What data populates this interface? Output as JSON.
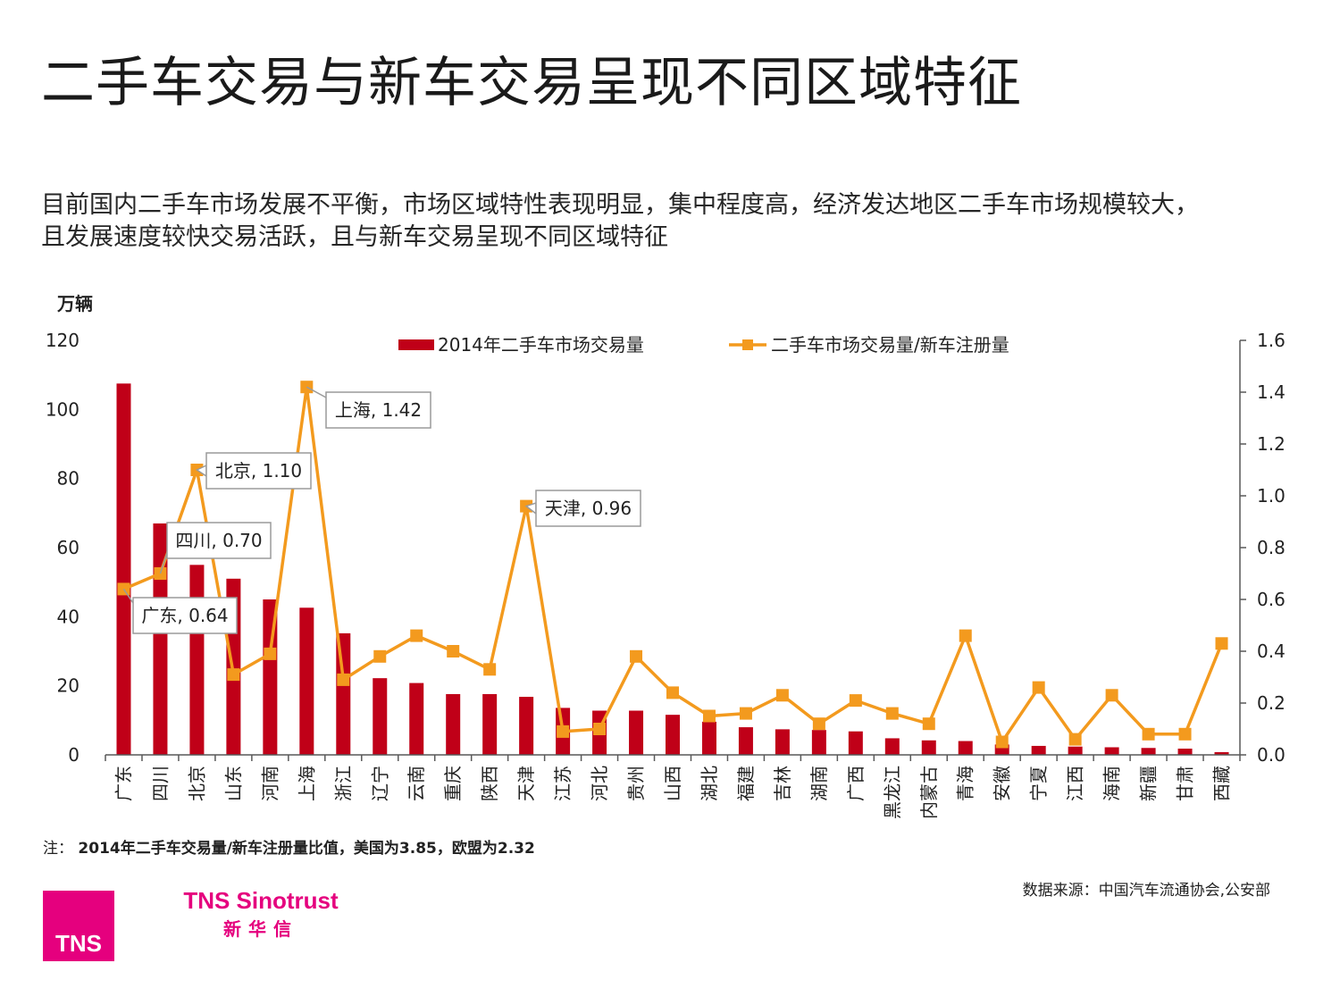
{
  "page": {
    "title": "二手车交易与新车交易呈现不同区域特征",
    "subtitle_line1": "目前国内二手车市场发展不平衡，市场区域特性表现明显，集中程度高，经济发达地区二手车市场规模较大，",
    "subtitle_line2": "且发展速度较快交易活跃，且与新车交易呈现不同区域特征",
    "note_prefix": "注：",
    "note_text": "2014年二手车交易量/新车注册量比值，美国为3.85，欧盟为2.32",
    "source": "数据来源：中国汽车流通协会,公安部",
    "logo_text": "TNS",
    "brand_en": "TNS Sinotrust",
    "brand_cn": "新华信"
  },
  "colors": {
    "bar": "#c00018",
    "line": "#f39a1e",
    "axis": "#595959",
    "callout_border": "#9a9a9a",
    "brand": "#e5007e"
  },
  "chart_data": {
    "type": "bar+line",
    "y_left_label": "万辆",
    "y_left_range": [
      0,
      120
    ],
    "y_left_ticks": [
      "0",
      "20",
      "40",
      "60",
      "80",
      "100",
      "120"
    ],
    "y_right_range": [
      0,
      1.6
    ],
    "y_right_ticks": [
      "0.0",
      "0.2",
      "0.4",
      "0.6",
      "0.8",
      "1.0",
      "1.2",
      "1.4",
      "1.6"
    ],
    "categories": [
      "广东",
      "四川",
      "北京",
      "山东",
      "河南",
      "上海",
      "浙江",
      "辽宁",
      "云南",
      "重庆",
      "陕西",
      "天津",
      "江苏",
      "河北",
      "贵州",
      "山西",
      "湖北",
      "福建",
      "吉林",
      "湖南",
      "广西",
      "黑龙江",
      "内蒙古",
      "青海",
      "安徽",
      "宁夏",
      "江西",
      "海南",
      "新疆",
      "甘肃",
      "西藏"
    ],
    "series": [
      {
        "name": "2014年二手车市场交易量",
        "type": "bar",
        "axis": "left",
        "values": [
          107.5,
          67,
          55,
          51,
          45,
          42.6,
          35.2,
          22.2,
          20.8,
          17.6,
          17.6,
          16.8,
          13.6,
          12.8,
          12.8,
          11.6,
          9.6,
          8,
          7.4,
          7.2,
          6.8,
          4.8,
          4.2,
          4.0,
          3.0,
          2.6,
          2.4,
          2.2,
          2.0,
          1.8,
          0.8
        ]
      },
      {
        "name": "二手车市场交易量/新车注册量",
        "type": "line",
        "axis": "right",
        "values": [
          0.64,
          0.7,
          1.1,
          0.31,
          0.39,
          1.42,
          0.29,
          0.38,
          0.46,
          0.4,
          0.33,
          0.96,
          0.09,
          0.1,
          0.38,
          0.24,
          0.15,
          0.16,
          0.23,
          0.12,
          0.21,
          0.16,
          0.12,
          0.46,
          0.05,
          0.26,
          0.06,
          0.23,
          0.08,
          0.08,
          0.43
        ]
      }
    ],
    "annotations": [
      {
        "category": "广东",
        "label": "广东, 0.64"
      },
      {
        "category": "四川",
        "label": "四川, 0.70"
      },
      {
        "category": "北京",
        "label": "北京, 1.10"
      },
      {
        "category": "上海",
        "label": "上海, 1.42"
      },
      {
        "category": "天津",
        "label": "天津, 0.96"
      }
    ],
    "legend_position": "top-center"
  }
}
